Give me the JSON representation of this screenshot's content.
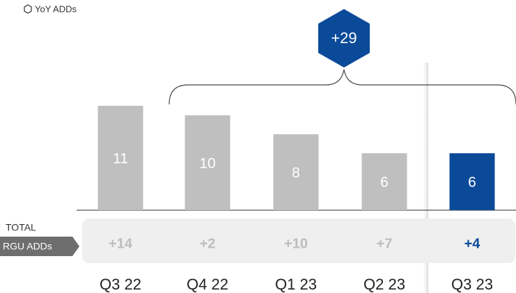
{
  "chart_data": {
    "type": "bar",
    "legend": "YoY ADDs",
    "categories": [
      "Q3 22",
      "Q4 22",
      "Q1 23",
      "Q2 23",
      "Q3 23"
    ],
    "values": [
      11,
      10,
      8,
      6,
      6
    ],
    "colors": [
      "#bfbfbf",
      "#bfbfbf",
      "#bfbfbf",
      "#bfbfbf",
      "#0b4a99"
    ],
    "row_title": "TOTAL",
    "row_tag": "RGU ADDs",
    "row_labels": [
      "+14",
      "+2",
      "+10",
      "+7",
      "+4"
    ],
    "annotation": "+29"
  }
}
